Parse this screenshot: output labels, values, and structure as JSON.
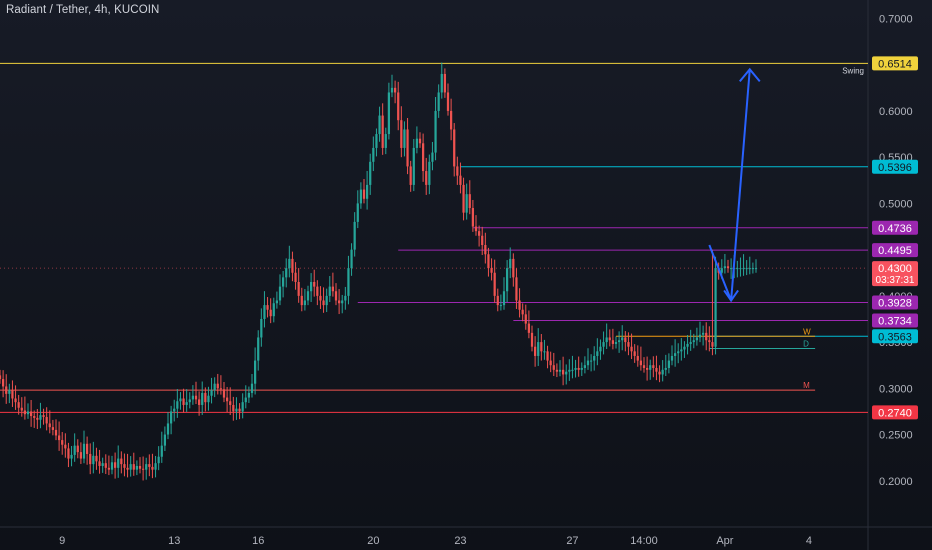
{
  "header": {
    "title": "Radiant / Tether, 4h, KUCOIN"
  },
  "colors": {
    "up": "#26a69a",
    "down": "#ef5350",
    "yellow_line": "#f0d23c",
    "purple": "#9c27b0",
    "cyan": "#00bcd4",
    "orange": "#f39c12",
    "red_line": "#f23645",
    "arrow": "#2962ff",
    "current_price": "#f7525f"
  },
  "chart_data": {
    "type": "candlestick",
    "title": "Radiant / Tether, 4h, KUCOIN",
    "ylim": [
      0.15,
      0.72
    ],
    "y_scale": "linear",
    "y_ticks": [
      0.2,
      0.25,
      0.3,
      0.35,
      0.4,
      0.45,
      0.5,
      0.55,
      0.6,
      0.65,
      0.7
    ],
    "y_tick_labels": [
      "0.2000",
      "0.2500",
      "0.3000",
      "0.3500",
      "0.4000",
      "0.4500",
      "0.5000",
      "0.5500",
      "0.6000",
      "0.6500",
      "0.7000"
    ],
    "x_tick_labels": [
      "9",
      "13",
      "16",
      "20",
      "23",
      "27",
      "14:00",
      "Apr",
      "4"
    ],
    "x_tick_bars": [
      20,
      56,
      83,
      120,
      148,
      184,
      207,
      233,
      260
    ],
    "n_bars": 280,
    "closes": [
      0.31,
      0.302,
      0.294,
      0.298,
      0.289,
      0.285,
      0.279,
      0.276,
      0.272,
      0.275,
      0.27,
      0.268,
      0.266,
      0.271,
      0.269,
      0.262,
      0.258,
      0.255,
      0.249,
      0.244,
      0.239,
      0.235,
      0.224,
      0.228,
      0.238,
      0.231,
      0.224,
      0.24,
      0.229,
      0.218,
      0.227,
      0.221,
      0.216,
      0.219,
      0.214,
      0.212,
      0.22,
      0.214,
      0.224,
      0.218,
      0.214,
      0.212,
      0.218,
      0.212,
      0.216,
      0.213,
      0.212,
      0.218,
      0.215,
      0.212,
      0.219,
      0.226,
      0.238,
      0.25,
      0.262,
      0.275,
      0.278,
      0.286,
      0.289,
      0.282,
      0.285,
      0.288,
      0.292,
      0.288,
      0.282,
      0.295,
      0.285,
      0.292,
      0.298,
      0.305,
      0.3,
      0.299,
      0.29,
      0.286,
      0.282,
      0.275,
      0.278,
      0.275,
      0.285,
      0.29,
      0.295,
      0.305,
      0.33,
      0.355,
      0.375,
      0.39,
      0.385,
      0.378,
      0.392,
      0.395,
      0.41,
      0.42,
      0.43,
      0.44,
      0.425,
      0.415,
      0.4,
      0.39,
      0.395,
      0.405,
      0.415,
      0.41,
      0.4,
      0.395,
      0.39,
      0.4,
      0.41,
      0.405,
      0.395,
      0.392,
      0.395,
      0.4,
      0.43,
      0.45,
      0.48,
      0.5,
      0.515,
      0.505,
      0.52,
      0.545,
      0.56,
      0.575,
      0.595,
      0.56,
      0.575,
      0.62,
      0.625,
      0.62,
      0.59,
      0.56,
      0.58,
      0.54,
      0.52,
      0.56,
      0.57,
      0.565,
      0.535,
      0.52,
      0.545,
      0.555,
      0.6,
      0.62,
      0.64,
      0.62,
      0.6,
      0.58,
      0.54,
      0.53,
      0.52,
      0.49,
      0.51,
      0.495,
      0.475,
      0.47,
      0.465,
      0.455,
      0.445,
      0.43,
      0.425,
      0.4,
      0.39,
      0.39,
      0.405,
      0.43,
      0.44,
      0.42,
      0.395,
      0.385,
      0.38,
      0.37,
      0.36,
      0.345,
      0.335,
      0.35,
      0.34,
      0.34,
      0.33,
      0.325,
      0.32,
      0.318,
      0.32,
      0.315,
      0.318,
      0.32,
      0.32,
      0.322,
      0.32,
      0.322,
      0.325,
      0.33,
      0.33,
      0.335,
      0.34,
      0.345,
      0.35,
      0.355,
      0.352,
      0.348,
      0.35,
      0.352,
      0.355,
      0.35,
      0.345,
      0.34,
      0.335,
      0.33,
      0.325,
      0.322,
      0.32,
      0.325,
      0.322,
      0.318,
      0.315,
      0.32,
      0.322,
      0.33,
      0.335,
      0.338,
      0.34,
      0.342,
      0.345,
      0.348,
      0.35,
      0.352,
      0.355,
      0.358,
      0.36,
      0.352,
      0.35,
      0.345,
      0.43,
      0.425,
      0.43,
      0.432,
      0.43,
      0.43,
      0.43,
      0.43,
      0.43,
      0.43,
      0.43,
      0.43,
      0.43,
      0.43,
      0.43,
      0.43,
      0.43,
      0.43,
      0.43,
      0.43,
      0.43,
      0.43,
      0.43,
      0.43,
      0.43,
      0.43,
      0.43,
      0.43,
      0.43,
      0.43,
      0.43,
      0.43,
      0.43,
      0.43,
      0.43,
      0.43,
      0.43,
      0.43,
      0.43,
      0.43,
      0.43,
      0.43,
      0.43,
      0.43,
      0.43,
      0.43,
      0.43,
      0.43,
      0.43,
      0.43
    ],
    "last_bar": 243,
    "horizontal_levels": [
      {
        "value": 0.6514,
        "color": "#f0d23c",
        "label": "Swing",
        "start_bar": 0,
        "tag_bg": "#f0d23c",
        "tag_fg": "#131722"
      },
      {
        "value": 0.5396,
        "color": "#00bcd4",
        "label": "",
        "start_bar": 148,
        "tag_bg": "#00bcd4",
        "tag_fg": "#131722"
      },
      {
        "value": 0.4736,
        "color": "#9c27b0",
        "label": "",
        "start_bar": 152,
        "tag_bg": "#9c27b0",
        "tag_fg": "#ffffff"
      },
      {
        "value": 0.4495,
        "color": "#9c27b0",
        "label": "",
        "start_bar": 128,
        "tag_bg": "#9c27b0",
        "tag_fg": "#ffffff"
      },
      {
        "value": 0.3928,
        "color": "#9c27b0",
        "label": "",
        "start_bar": 115,
        "tag_bg": "#9c27b0",
        "tag_fg": "#ffffff"
      },
      {
        "value": 0.3734,
        "color": "#9c27b0",
        "label": "",
        "start_bar": 165,
        "tag_bg": "#9c27b0",
        "tag_fg": "#ffffff"
      },
      {
        "value": 0.3563,
        "color": "#00bcd4",
        "label": "",
        "start_bar": 228,
        "tag_bg": "#00bcd4",
        "tag_fg": "#131722"
      },
      {
        "value": 0.274,
        "color": "#f23645",
        "label": "",
        "start_bar": 0,
        "tag_bg": "#f23645",
        "tag_fg": "#ffffff"
      }
    ],
    "short_levels": [
      {
        "value": 0.3563,
        "color": "#f39c12",
        "label": "W",
        "start_bar": 198,
        "end_bar": 262
      },
      {
        "value": 0.343,
        "color": "#26a69a",
        "label": "D",
        "start_bar": 228,
        "end_bar": 262
      },
      {
        "value": 0.298,
        "color": "#ef5350",
        "label": "M",
        "start_bar": 0,
        "end_bar": 262
      }
    ],
    "current_price": {
      "value": 0.43,
      "label": "0.4300",
      "countdown": "03:37:31"
    },
    "level_tags": [
      "0.6514",
      "0.5396",
      "0.4736",
      "0.4495",
      "0.3928",
      "0.3734",
      "0.3563",
      "0.2740"
    ],
    "projection_arrow": {
      "points": [
        [
          228,
          0.455
        ],
        [
          235,
          0.395
        ],
        [
          241,
          0.645
        ]
      ],
      "color": "#2962ff"
    }
  }
}
